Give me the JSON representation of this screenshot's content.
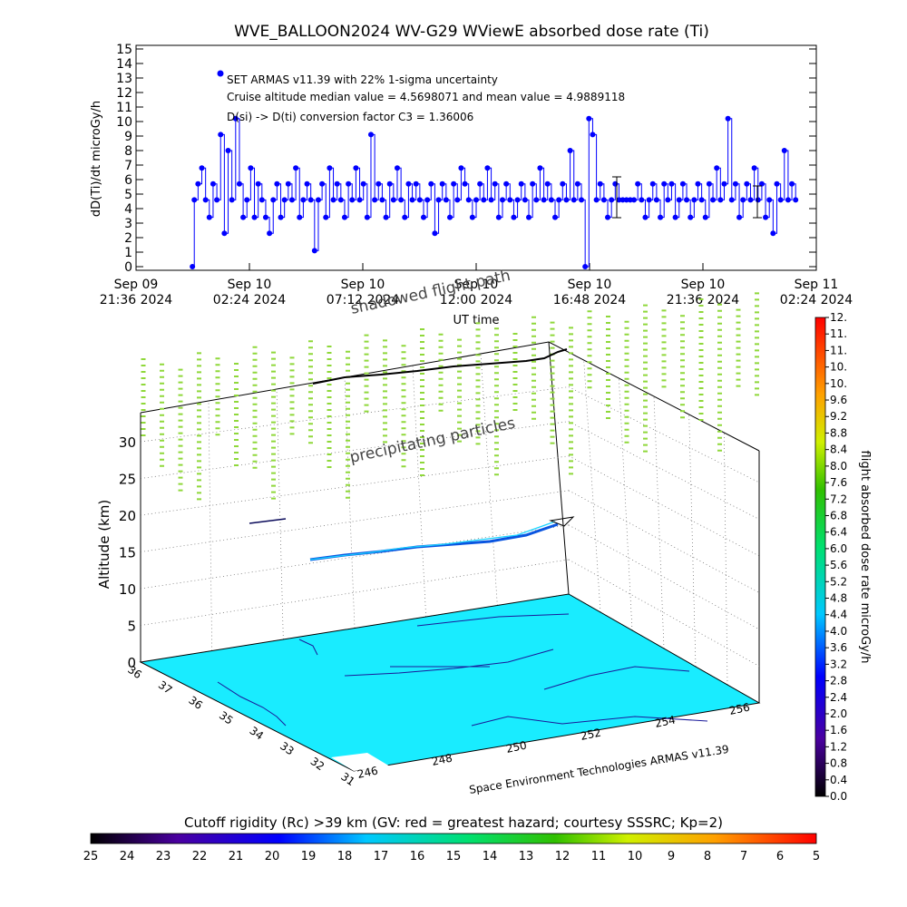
{
  "chart_data": [
    {
      "type": "line",
      "title": "WVE_BALLOON2024 WV-G29 WViewE absorbed dose rate (Ti)",
      "ylabel": "dD(Ti)/dt microGy/h",
      "xlabel": "UT time",
      "ylim": [
        0,
        15
      ],
      "yticks": [
        "0",
        "1",
        "2",
        "3",
        "4",
        "5",
        "6",
        "7",
        "8",
        "9",
        "10",
        "11",
        "12",
        "13",
        "14",
        "15"
      ],
      "xticks": [
        {
          "line1": "Sep 09",
          "line2": "21:36 2024"
        },
        {
          "line1": "Sep 10",
          "line2": "02:24 2024"
        },
        {
          "line1": "Sep 10",
          "line2": "07:12 2024"
        },
        {
          "line1": "Sep 10",
          "line2": "12:00 2024"
        },
        {
          "line1": "Sep 10",
          "line2": "16:48 2024"
        },
        {
          "line1": "Sep 10",
          "line2": "21:36 2024"
        },
        {
          "line1": "Sep 11",
          "line2": "02:24 2024"
        }
      ],
      "legend": [
        "SET ARMAS v11.39 with 22% 1-sigma uncertainty",
        "Cruise altitude median value = 4.5698071 and mean value = 4.9889118",
        "D(si) -> D(ti) conversion factor C3 = 1.36006"
      ],
      "series": [
        {
          "color": "#0000ff",
          "x_hours_axis": [
            0,
            36.2
          ],
          "x": [
            3.0,
            3.1,
            3.3,
            3.5,
            3.7,
            3.9,
            4.1,
            4.3,
            4.5,
            4.7,
            4.9,
            5.1,
            5.3,
            5.5,
            5.7,
            5.9,
            6.1,
            6.3,
            6.5,
            6.7,
            6.9,
            7.1,
            7.3,
            7.5,
            7.7,
            7.9,
            8.1,
            8.3,
            8.5,
            8.7,
            8.9,
            9.1,
            9.3,
            9.5,
            9.7,
            9.9,
            10.1,
            10.3,
            10.5,
            10.7,
            10.9,
            11.1,
            11.3,
            11.5,
            11.7,
            11.9,
            12.1,
            12.3,
            12.5,
            12.7,
            12.9,
            13.1,
            13.3,
            13.5,
            13.7,
            13.9,
            14.1,
            14.3,
            14.5,
            14.7,
            14.9,
            15.1,
            15.3,
            15.5,
            15.7,
            15.9,
            16.1,
            16.3,
            16.5,
            16.7,
            16.9,
            17.1,
            17.3,
            17.5,
            17.7,
            17.9,
            18.1,
            18.3,
            18.5,
            18.7,
            18.9,
            19.1,
            19.3,
            19.5,
            19.7,
            19.9,
            20.1,
            20.3,
            20.5,
            20.7,
            20.9,
            21.1,
            21.3,
            21.5,
            21.7,
            21.9,
            22.1,
            22.3,
            22.5,
            22.7,
            22.9,
            23.1,
            23.3,
            23.5,
            23.7,
            23.9,
            24.1,
            24.3,
            24.5,
            24.7,
            24.9,
            25.1,
            25.3,
            25.5,
            25.7,
            25.9,
            26.1,
            26.3,
            26.5,
            26.7,
            26.9,
            27.1,
            27.3,
            27.5,
            27.7,
            27.9,
            28.1,
            28.3,
            28.5,
            28.7,
            28.9,
            29.1,
            29.3,
            29.5,
            29.7,
            29.9,
            30.1,
            30.3,
            30.5,
            30.7,
            30.9,
            31.1,
            31.3,
            31.5,
            31.7,
            31.9,
            32.1,
            32.3,
            32.5,
            32.7,
            32.9,
            33.1,
            33.3,
            33.5,
            33.7,
            33.9,
            34.1,
            34.3,
            34.5,
            34.7,
            34.9,
            35.1
          ],
          "y": [
            0,
            4.6,
            5.7,
            6.8,
            4.6,
            3.4,
            5.7,
            4.6,
            9.1,
            2.3,
            8.0,
            4.6,
            10.2,
            5.7,
            3.4,
            4.6,
            6.8,
            3.4,
            5.7,
            4.6,
            3.4,
            2.3,
            4.6,
            5.7,
            3.4,
            4.6,
            5.7,
            4.6,
            6.8,
            3.4,
            4.6,
            5.7,
            4.6,
            1.1,
            4.6,
            5.7,
            3.4,
            6.8,
            4.6,
            5.7,
            4.6,
            3.4,
            5.7,
            4.6,
            6.8,
            4.6,
            5.7,
            3.4,
            9.1,
            4.6,
            5.7,
            4.6,
            3.4,
            5.7,
            4.6,
            6.8,
            4.6,
            3.4,
            5.7,
            4.6,
            5.7,
            4.6,
            3.4,
            4.6,
            5.7,
            2.3,
            4.6,
            5.7,
            4.6,
            3.4,
            5.7,
            4.6,
            6.8,
            5.7,
            4.6,
            3.4,
            4.6,
            5.7,
            4.6,
            6.8,
            4.6,
            5.7,
            3.4,
            4.6,
            5.7,
            4.6,
            3.4,
            4.6,
            5.7,
            4.6,
            3.4,
            5.7,
            4.6,
            6.8,
            4.6,
            5.7,
            4.6,
            3.4,
            4.6,
            5.7,
            4.6,
            8.0,
            4.6,
            5.7,
            4.6,
            0,
            10.2,
            9.1,
            4.6,
            5.7,
            4.6,
            3.4,
            4.6,
            5.7,
            4.6,
            4.6,
            4.6,
            4.6,
            4.6,
            5.7,
            4.6,
            3.4,
            4.6,
            5.7,
            4.6,
            3.4,
            5.7,
            4.6,
            5.7,
            3.4,
            4.6,
            5.7,
            4.6,
            3.4,
            4.6,
            5.7,
            4.6,
            3.4,
            5.7,
            4.6,
            6.8,
            4.6,
            5.7,
            10.2,
            4.6,
            5.7,
            3.4,
            4.6,
            5.7,
            4.6,
            6.8,
            4.6,
            5.7,
            3.4,
            4.6,
            2.3,
            5.7,
            4.6,
            8.0,
            4.6,
            5.7,
            4.6
          ]
        }
      ]
    },
    {
      "type": "scatter",
      "title": "",
      "zlabel": "Altitude (km)",
      "zticks": [
        "0",
        "5",
        "10",
        "15",
        "20",
        "25",
        "30"
      ],
      "lat_ticks": [
        "36",
        "37",
        "36",
        "35",
        "34",
        "33",
        "32",
        "31"
      ],
      "lon_ticks": [
        "246",
        "248",
        "250",
        "252",
        "254",
        "256"
      ],
      "annotations": [
        "shadowed flight path",
        "precipitating particles"
      ],
      "credit": "Space Environment Technologies ARMAS v11.39",
      "colorbar_dose": {
        "label": "flight absorbed dose rate microGy/h",
        "ticks": [
          "0.0",
          "0.4",
          "0.8",
          "1.2",
          "1.6",
          "2.0",
          "2.4",
          "2.8",
          "3.2",
          "3.6",
          "4.0",
          "4.4",
          "4.8",
          "5.2",
          "5.6",
          "6.0",
          "6.4",
          "6.8",
          "7.2",
          "7.6",
          "8.0",
          "8.4",
          "8.8",
          "9.2",
          "9.6",
          "10.",
          "10.",
          "11.",
          "11.",
          "12."
        ],
        "range": [
          0,
          12
        ]
      },
      "colorbar_rigidity": {
        "label": "Cutoff rigidity (Rc) >39 km (GV: red = greatest hazard; courtesy SSSRC; Kp=2)",
        "ticks": [
          "25",
          "24",
          "23",
          "22",
          "21",
          "20",
          "19",
          "18",
          "17",
          "16",
          "15",
          "14",
          "13",
          "12",
          "11",
          "10",
          "9",
          "8",
          "7",
          "6",
          "5"
        ]
      },
      "colors": {
        "map_fill": "#19ecff",
        "particles": "#8fd83a",
        "flight_path": "#000000"
      }
    }
  ]
}
